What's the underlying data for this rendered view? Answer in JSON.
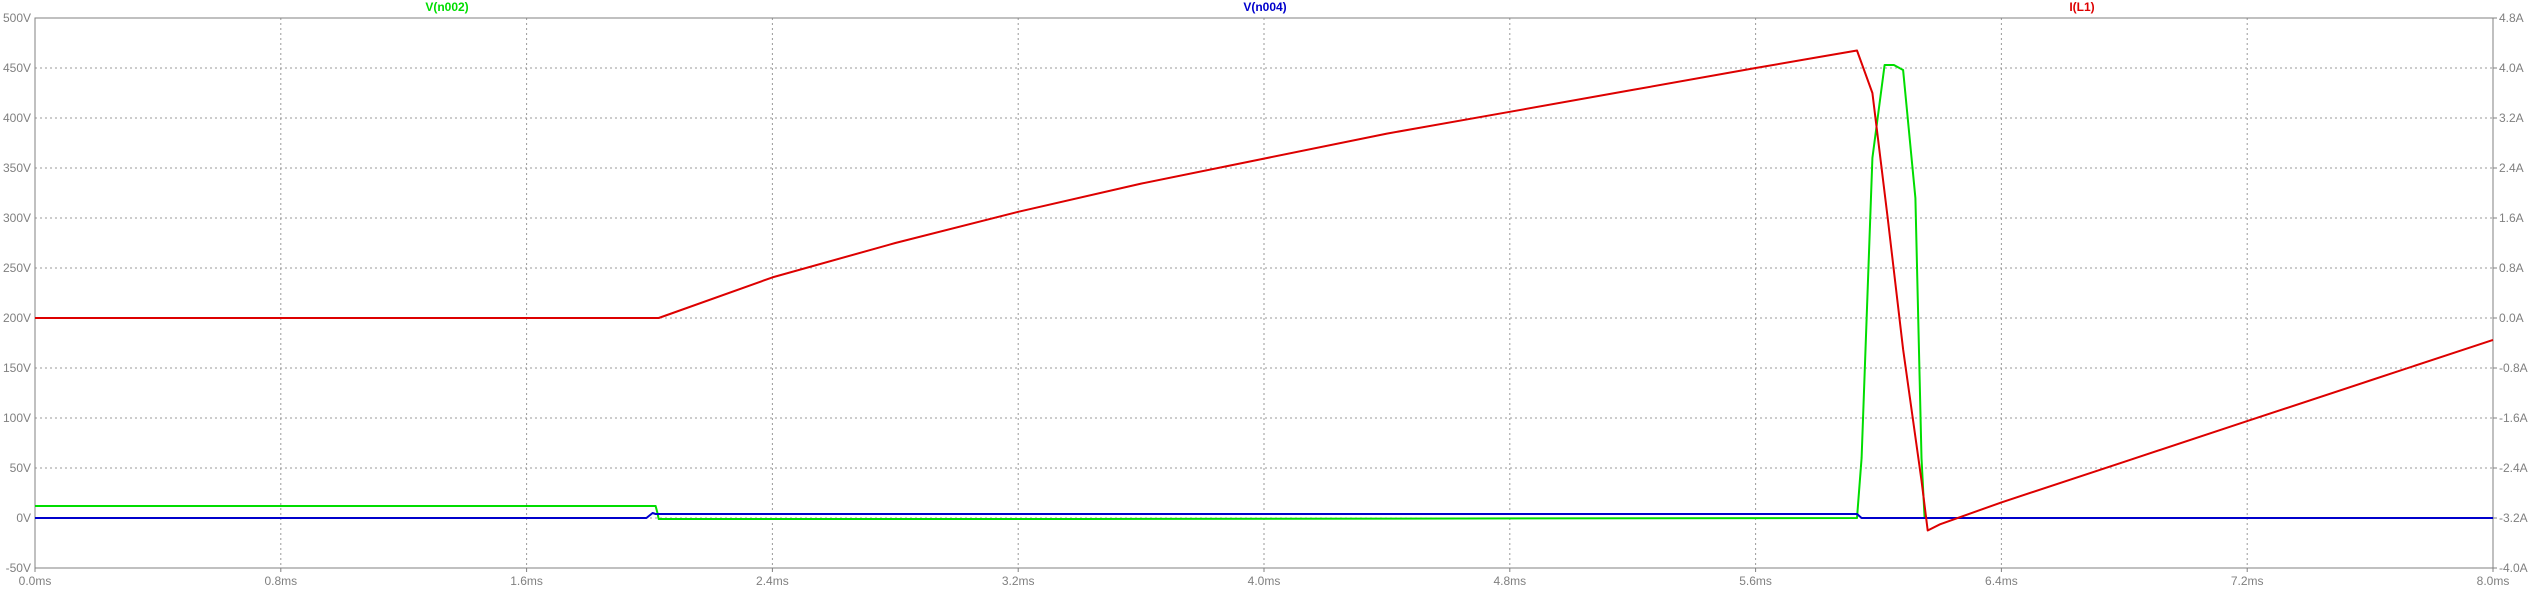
{
  "chart_data": {
    "type": "line",
    "x_ticks": [
      "0.0ms",
      "0.8ms",
      "1.6ms",
      "2.4ms",
      "3.2ms",
      "4.0ms",
      "4.8ms",
      "5.6ms",
      "6.4ms",
      "7.2ms",
      "8.0ms"
    ],
    "y_left_ticks": [
      "500V",
      "450V",
      "400V",
      "350V",
      "300V",
      "250V",
      "200V",
      "150V",
      "100V",
      "50V",
      "0V",
      "-50V"
    ],
    "y_right_ticks": [
      "4.8A",
      "4.0A",
      "3.2A",
      "2.4A",
      "1.6A",
      "0.8A",
      "0.0A",
      "-0.8A",
      "-1.6A",
      "-2.4A",
      "-3.2A",
      "-4.0A"
    ],
    "xlim": [
      0,
      8
    ],
    "x_unit": "ms",
    "ylim_left": [
      -50,
      500
    ],
    "ylim_right": [
      -4.0,
      4.8
    ],
    "grid": true,
    "colors": {
      "V(n002)": "#00dd00",
      "V(n004)": "#0000cc",
      "I(L1)": "#dd0000",
      "grid": "#9a9a9a",
      "axis": "#808080"
    },
    "series": [
      {
        "name": "V(n002)",
        "axis": "left",
        "x": [
          0.0,
          2.02,
          2.025,
          2.03,
          3.4,
          5.93,
          5.945,
          5.98,
          6.02,
          6.05,
          6.08,
          6.12,
          6.14,
          6.15,
          8.0
        ],
        "y": [
          12,
          12,
          6,
          -1,
          -1,
          0,
          60,
          360,
          453,
          453,
          448,
          320,
          60,
          0,
          0
        ]
      },
      {
        "name": "V(n004)",
        "axis": "left",
        "x": [
          0.0,
          1.99,
          2.01,
          2.02,
          5.93,
          5.945,
          8.0
        ],
        "y": [
          0,
          0,
          5,
          4,
          4,
          0,
          0
        ]
      },
      {
        "name": "I(L1)",
        "axis": "right",
        "x": [
          0.0,
          2.03,
          2.4,
          2.8,
          3.2,
          3.6,
          4.0,
          4.4,
          4.8,
          5.2,
          5.6,
          5.8,
          5.93,
          5.98,
          6.03,
          6.08,
          6.14,
          6.16,
          6.2,
          6.4,
          6.8,
          7.2,
          7.6,
          8.0
        ],
        "y": [
          0.0,
          0.0,
          0.65,
          1.2,
          1.7,
          2.15,
          2.55,
          2.95,
          3.3,
          3.65,
          4.0,
          4.17,
          4.28,
          3.6,
          1.6,
          -0.5,
          -2.6,
          -3.4,
          -3.3,
          -2.95,
          -2.3,
          -1.65,
          -1.0,
          -0.35
        ]
      }
    ]
  }
}
